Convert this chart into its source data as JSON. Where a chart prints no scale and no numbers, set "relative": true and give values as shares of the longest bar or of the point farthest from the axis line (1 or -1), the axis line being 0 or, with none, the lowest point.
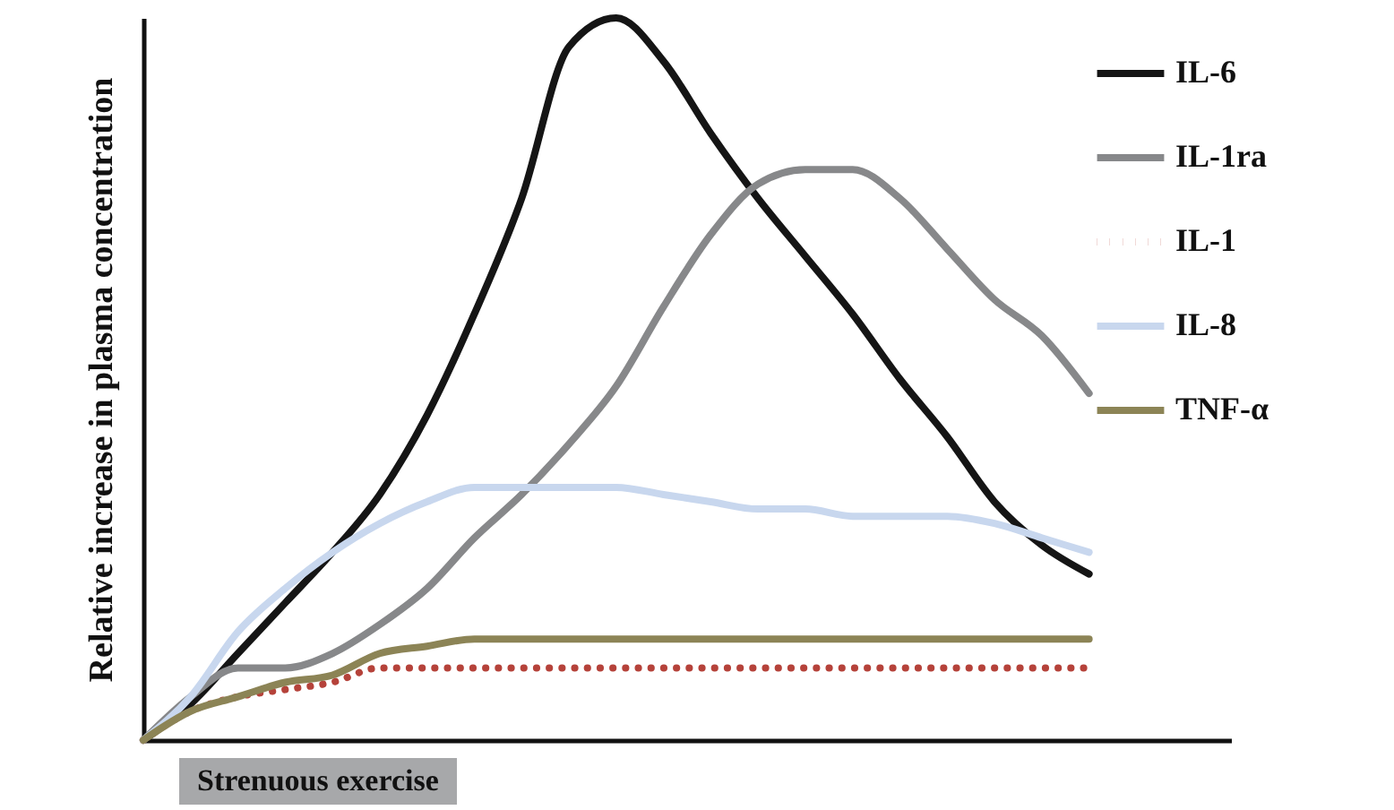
{
  "chart_data": {
    "type": "line",
    "relative": true,
    "ylabel": "Relative increase in plasma concentration",
    "categories": [
      null,
      null,
      null,
      null,
      null,
      null,
      null,
      null,
      null,
      null,
      null,
      null,
      null,
      null,
      null,
      null,
      null,
      null,
      null,
      null,
      null,
      null,
      null,
      null
    ],
    "series": [
      {
        "name": "IL-6",
        "color": "#151515",
        "line_style": "solid",
        "values": [
          0,
          0.05,
          0.12,
          0.19,
          0.26,
          0.34,
          0.45,
          0.59,
          0.75,
          0.96,
          1,
          0.94,
          0.84,
          0.75,
          0.67,
          0.59,
          0.5,
          0.42,
          0.33,
          0.27,
          0.23,
          null,
          null,
          null
        ]
      },
      {
        "name": "IL-1ra",
        "color": "#87888a",
        "line_style": "solid",
        "values": [
          0,
          0.06,
          0.1,
          0.1,
          0.12,
          0.16,
          0.21,
          0.28,
          0.34,
          0.41,
          0.49,
          0.6,
          0.7,
          0.77,
          0.79,
          0.79,
          0.75,
          0.68,
          0.61,
          0.56,
          0.48,
          null,
          null,
          null
        ]
      },
      {
        "name": "IL-1",
        "color": "#b5423a",
        "line_style": "dotted",
        "values": [
          0,
          0.04,
          0.06,
          0.07,
          0.08,
          0.1,
          0.1,
          0.1,
          0.1,
          0.1,
          0.1,
          0.1,
          0.1,
          0.1,
          0.1,
          0.1,
          0.1,
          0.1,
          0.1,
          0.1,
          0.1,
          null,
          null,
          null
        ]
      },
      {
        "name": "IL-8",
        "color": "#c8d7ee",
        "line_style": "solid",
        "values": [
          0,
          0.06,
          0.15,
          0.21,
          0.26,
          0.3,
          0.33,
          0.35,
          0.35,
          0.35,
          0.35,
          0.34,
          0.33,
          0.32,
          0.32,
          0.31,
          0.31,
          0.31,
          0.3,
          0.28,
          0.26,
          null,
          null,
          null
        ]
      },
      {
        "name": "TNF-α",
        "color": "#8c8456",
        "line_style": "solid",
        "values": [
          0,
          0.04,
          0.06,
          0.08,
          0.09,
          0.12,
          0.13,
          0.14,
          0.14,
          0.14,
          0.14,
          0.14,
          0.14,
          0.14,
          0.14,
          0.14,
          0.14,
          0.14,
          0.14,
          0.14,
          0.14,
          null,
          null,
          null
        ]
      }
    ],
    "legend": "top right",
    "annotations": [
      "Strenuous exercise"
    ]
  }
}
